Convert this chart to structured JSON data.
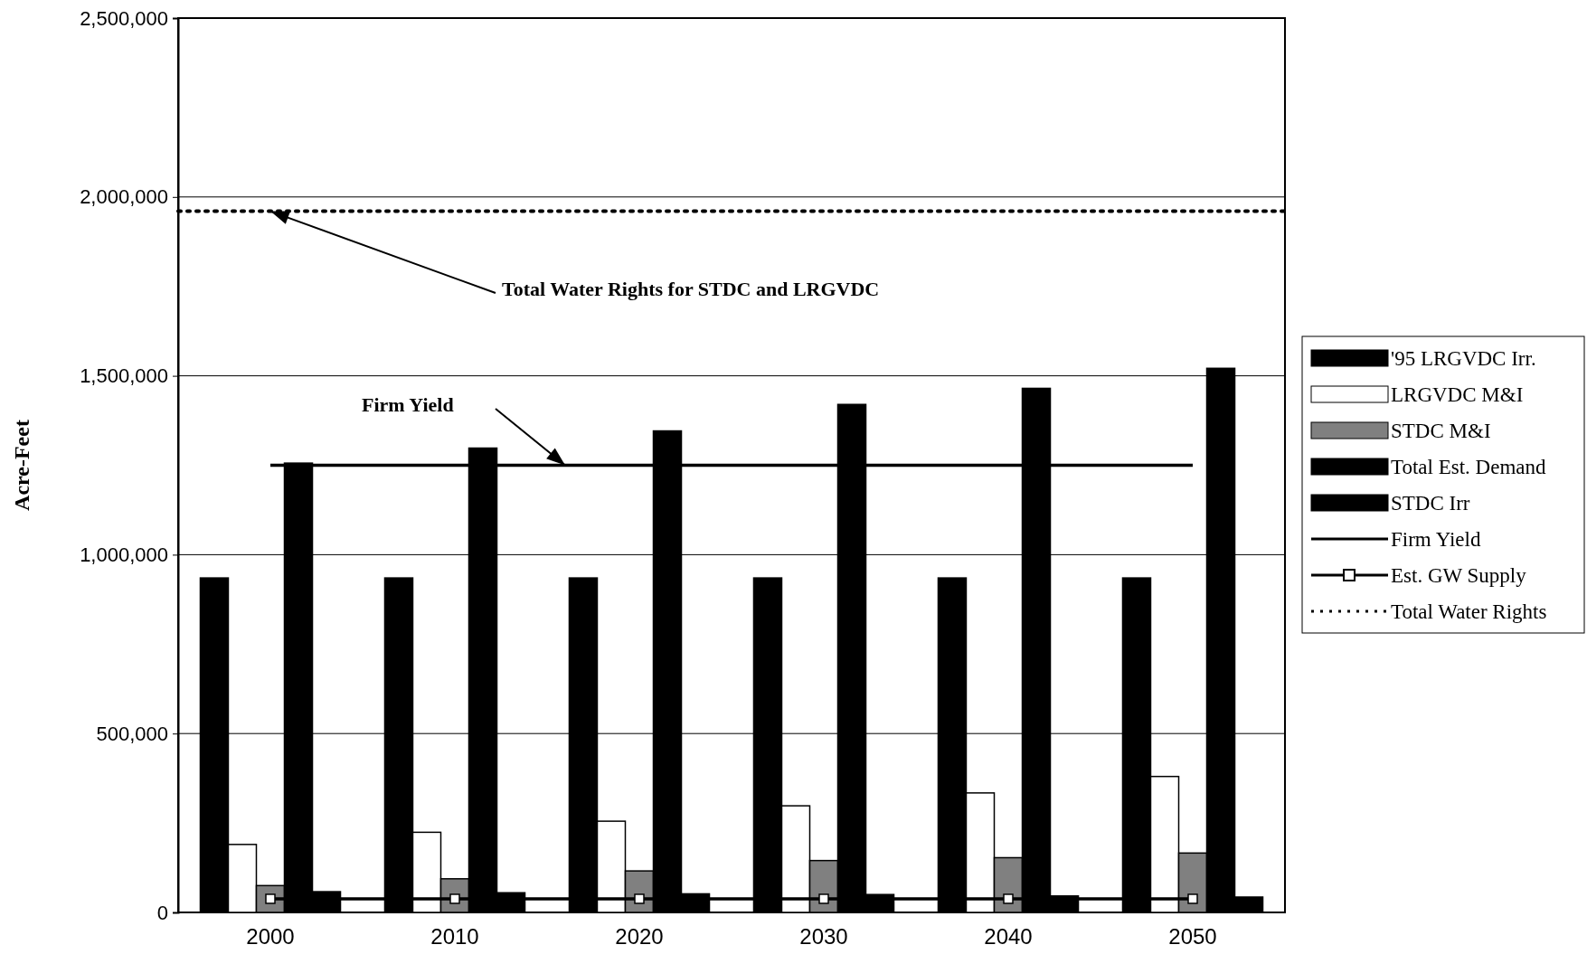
{
  "chart_data": {
    "type": "bar",
    "ylabel": "Acre-Feet",
    "categories": [
      "2000",
      "2010",
      "2020",
      "2030",
      "2040",
      "2050"
    ],
    "series": [
      {
        "name": "'95 LRGVDC Irr.",
        "color": "#000000",
        "values": [
          935000,
          935000,
          935000,
          935000,
          935000,
          935000
        ]
      },
      {
        "name": "LRGVDC M&I",
        "color": "#ffffff",
        "values": [
          190000,
          224000,
          255000,
          298000,
          334000,
          380000
        ]
      },
      {
        "name": "STDC M&I",
        "color": "#808080",
        "values": [
          75000,
          94000,
          116000,
          145000,
          153000,
          166000
        ]
      },
      {
        "name": "Total Est. Demand",
        "color": "#000000",
        "values": [
          1256000,
          1298000,
          1346000,
          1420000,
          1465000,
          1521000
        ]
      },
      {
        "name": "STDC Irr",
        "color": "#000000",
        "values": [
          58000,
          55000,
          52000,
          50000,
          46000,
          43000
        ]
      },
      {
        "name": "Firm Yield",
        "type": "line",
        "color": "#000000",
        "marker": "none",
        "values": [
          1250000,
          1250000,
          1250000,
          1250000,
          1250000,
          1250000
        ]
      },
      {
        "name": "Est. GW Supply",
        "type": "line",
        "color": "#000000",
        "marker": "square",
        "values": [
          38000,
          38000,
          38000,
          38000,
          38000,
          38000
        ]
      }
    ],
    "ref_lines": [
      {
        "axis": "y",
        "value": 1960000,
        "label": "Total Water Rights",
        "color": "#000000",
        "line_style": "dotted"
      }
    ],
    "annotations": [
      {
        "text": "Total Water Rights for STDC and LRGVDC",
        "x": "2000",
        "y": 1960000
      },
      {
        "text": "Firm Yield",
        "y": 1250000
      }
    ],
    "ylim": [
      0,
      2500000
    ],
    "yticks": [
      {
        "value": 0,
        "label": "0"
      },
      {
        "value": 500000,
        "label": "500,000"
      },
      {
        "value": 1000000,
        "label": "1,000,000"
      },
      {
        "value": 1500000,
        "label": "1,500,000"
      },
      {
        "value": 2000000,
        "label": "2,000,000"
      },
      {
        "value": 2500000,
        "label": "2,500,000"
      }
    ],
    "grid": "y",
    "legend": "right"
  }
}
